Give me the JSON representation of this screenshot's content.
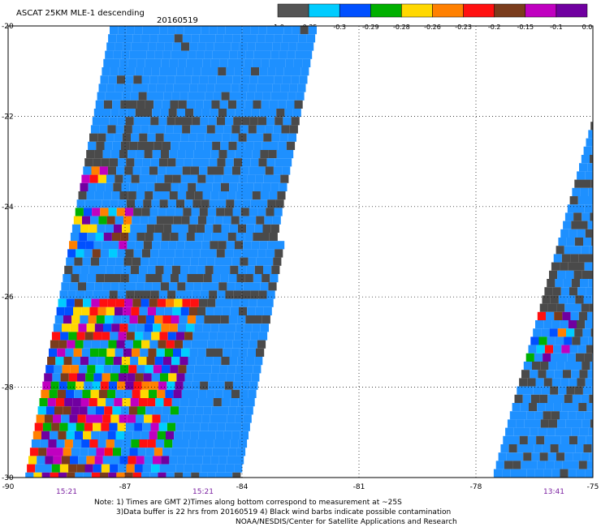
{
  "header": {
    "title": "ASCAT 25KM MLE-1 descending",
    "date": "20160519"
  },
  "color_scale": {
    "colors": [
      "#555555",
      "#00ccff",
      "#0050ff",
      "#00b000",
      "#ffd800",
      "#ff8000",
      "#ff1010",
      "#7a3c1c",
      "#c000c0",
      "#7000a0"
    ],
    "labels": [
      "-1.0",
      "-0.35",
      "-0.3",
      "-0.29",
      "-0.28",
      "-0.26",
      "-0.23",
      "-0.2",
      "-0.15",
      "-0.1",
      "0.0"
    ]
  },
  "map": {
    "lon_range": [
      -90,
      -75
    ],
    "lat_range": [
      -30,
      -20
    ],
    "lon_ticks": [
      "-90",
      "-87",
      "-84",
      "-81",
      "-78",
      "-75"
    ],
    "lat_ticks": [
      "-20",
      "-22",
      "-24",
      "-26",
      "-28",
      "-30"
    ],
    "time_labels": [
      {
        "text": "15:21",
        "lon": -88.5
      },
      {
        "text": "15:21",
        "lon": -85.0
      },
      {
        "text": "13:41",
        "lon": -76.0
      }
    ],
    "base_color": "#1e90ff",
    "dark_color": "#4a4a4a"
  },
  "notes": {
    "line1": "Note: 1) Times are GMT 2)Times along bottom correspond to measurement at ~25S",
    "line2": "3)Data buffer is 22 hrs from 20160519 4) Black wind barbs indicate possible contamination",
    "line3": "NOAA/NESDIS/Center for Satellite Applications and Research"
  }
}
